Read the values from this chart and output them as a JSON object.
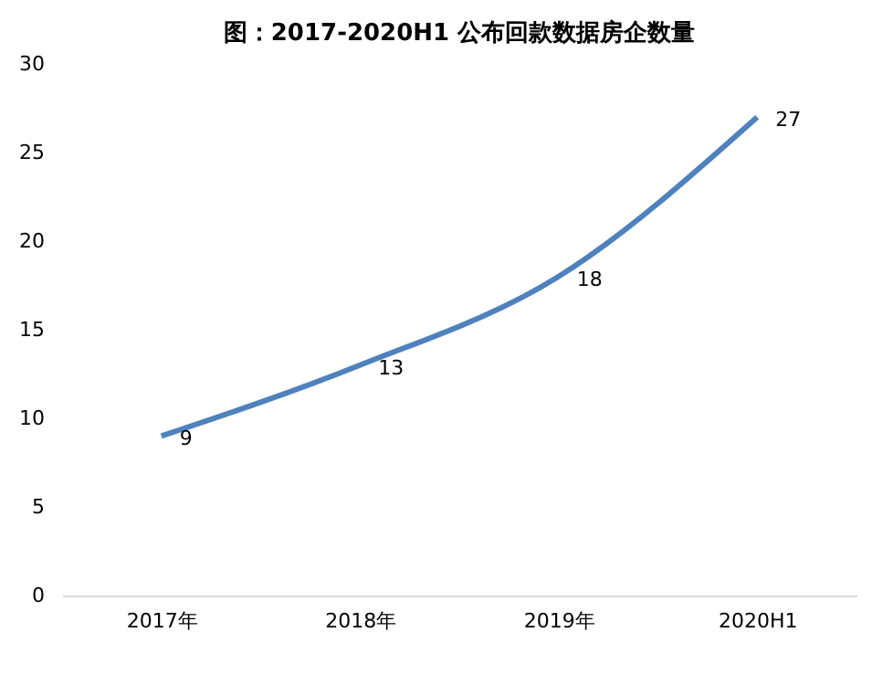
{
  "chart_data": {
    "type": "line",
    "title": "图：2017-2020H1 公布回款数据房企数量",
    "categories": [
      "2017年",
      "2018年",
      "2019年",
      "2020H1"
    ],
    "series": [
      {
        "color": "#4f81bd",
        "values": [
          9,
          13,
          18,
          27
        ]
      }
    ],
    "ylim": [
      0,
      30
    ],
    "yticks": [
      0,
      5,
      10,
      15,
      20,
      25,
      30
    ],
    "grid": false,
    "marker": "none",
    "line_style": "solid",
    "data_labels": true
  }
}
